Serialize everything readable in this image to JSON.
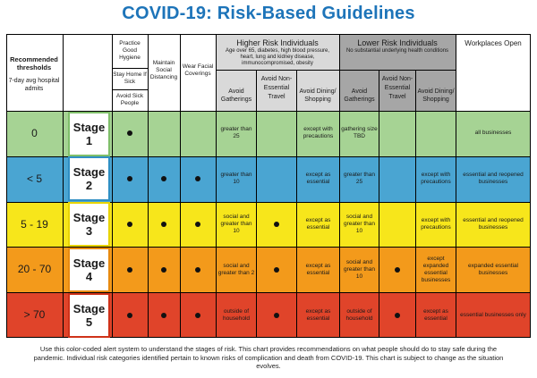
{
  "title": "COVID-19: Risk-Based Guidelines",
  "header": {
    "thresholds_title": "Recommended thresholds",
    "thresholds_sub": "7-day avg hospital admits",
    "practice": "Practice Good Hygiene",
    "stay_home": "Stay Home If Sick",
    "avoid_sick": "Avoid Sick People",
    "social_distancing": "Maintain Social Distancing",
    "facial_coverings": "Wear Facial Coverings",
    "higher_risk_title": "Higher Risk Individuals",
    "higher_risk_sub": "Age over 65, diabetes, high blood pressure, heart, lung and kidney disease, immunocompromised, obesity",
    "lower_risk_title": "Lower Risk Individuals",
    "lower_risk_sub": "No substantial underlying health conditions",
    "avoid_gatherings": "Avoid Gatherings",
    "avoid_travel": "Avoid Non-Essential Travel",
    "avoid_dining": "Avoid Dining/ Shopping",
    "workplaces_open": "Workplaces Open"
  },
  "rows": [
    {
      "threshold": "0",
      "stage": "Stage",
      "stage_num": "1",
      "color": "#a6d394",
      "stage_border": "#7fbf6a",
      "hr_gatherings": "greater than 25",
      "hr_travel": "",
      "hr_dining": "except with precautions",
      "lr_gatherings": "gathering size TBD",
      "lr_travel": "",
      "lr_dining": "",
      "workplaces": "all businesses"
    },
    {
      "threshold": "< 5",
      "stage": "Stage",
      "stage_num": "2",
      "color": "#4aa5d2",
      "stage_border": "#2f8fc4",
      "hr_gatherings": "greater than 10",
      "hr_travel": "",
      "hr_dining": "except as essential",
      "lr_gatherings": "greater than 25",
      "lr_travel": "",
      "lr_dining": "except with precautions",
      "workplaces": "essential and reopened businesses"
    },
    {
      "threshold": "5 - 19",
      "stage": "Stage",
      "stage_num": "3",
      "color": "#f7e61b",
      "stage_border": "#e8d400",
      "hr_gatherings": "social and greater than 10",
      "hr_travel": "dot",
      "hr_dining": "except as essential",
      "lr_gatherings": "social and greater than 10",
      "lr_travel": "",
      "lr_dining": "except with precautions",
      "workplaces": "essential and reopened businesses"
    },
    {
      "threshold": "20 - 70",
      "stage": "Stage",
      "stage_num": "4",
      "color": "#f39a1b",
      "stage_border": "#e88a10",
      "hr_gatherings": "social and greater than 2",
      "hr_travel": "dot",
      "hr_dining": "except as essential",
      "lr_gatherings": "social and greater than 10",
      "lr_travel": "dot",
      "lr_dining": "except expanded essential businesses",
      "workplaces": "expanded essential businesses"
    },
    {
      "threshold": "> 70",
      "stage": "Stage",
      "stage_num": "5",
      "color": "#e0442a",
      "stage_border": "#cf3219",
      "hr_gatherings": "outside of household",
      "hr_travel": "dot",
      "hr_dining": "except as essential",
      "lr_gatherings": "outside of household",
      "lr_travel": "dot",
      "lr_dining": "except as essential",
      "workplaces": "essential businesses only"
    }
  ],
  "caption": "Use this color-coded alert system to understand the stages of risk. This chart provides recommendations on what people should do to stay safe during the pandemic. Individual risk categories identified pertain to known risks of complication and death from COVID-19. This chart is subject to change as the situation evolves.",
  "colors": {
    "title": "#1d74b9",
    "higher_risk_bg": "#d9d9d9",
    "lower_risk_bg": "#a6a6a6"
  }
}
